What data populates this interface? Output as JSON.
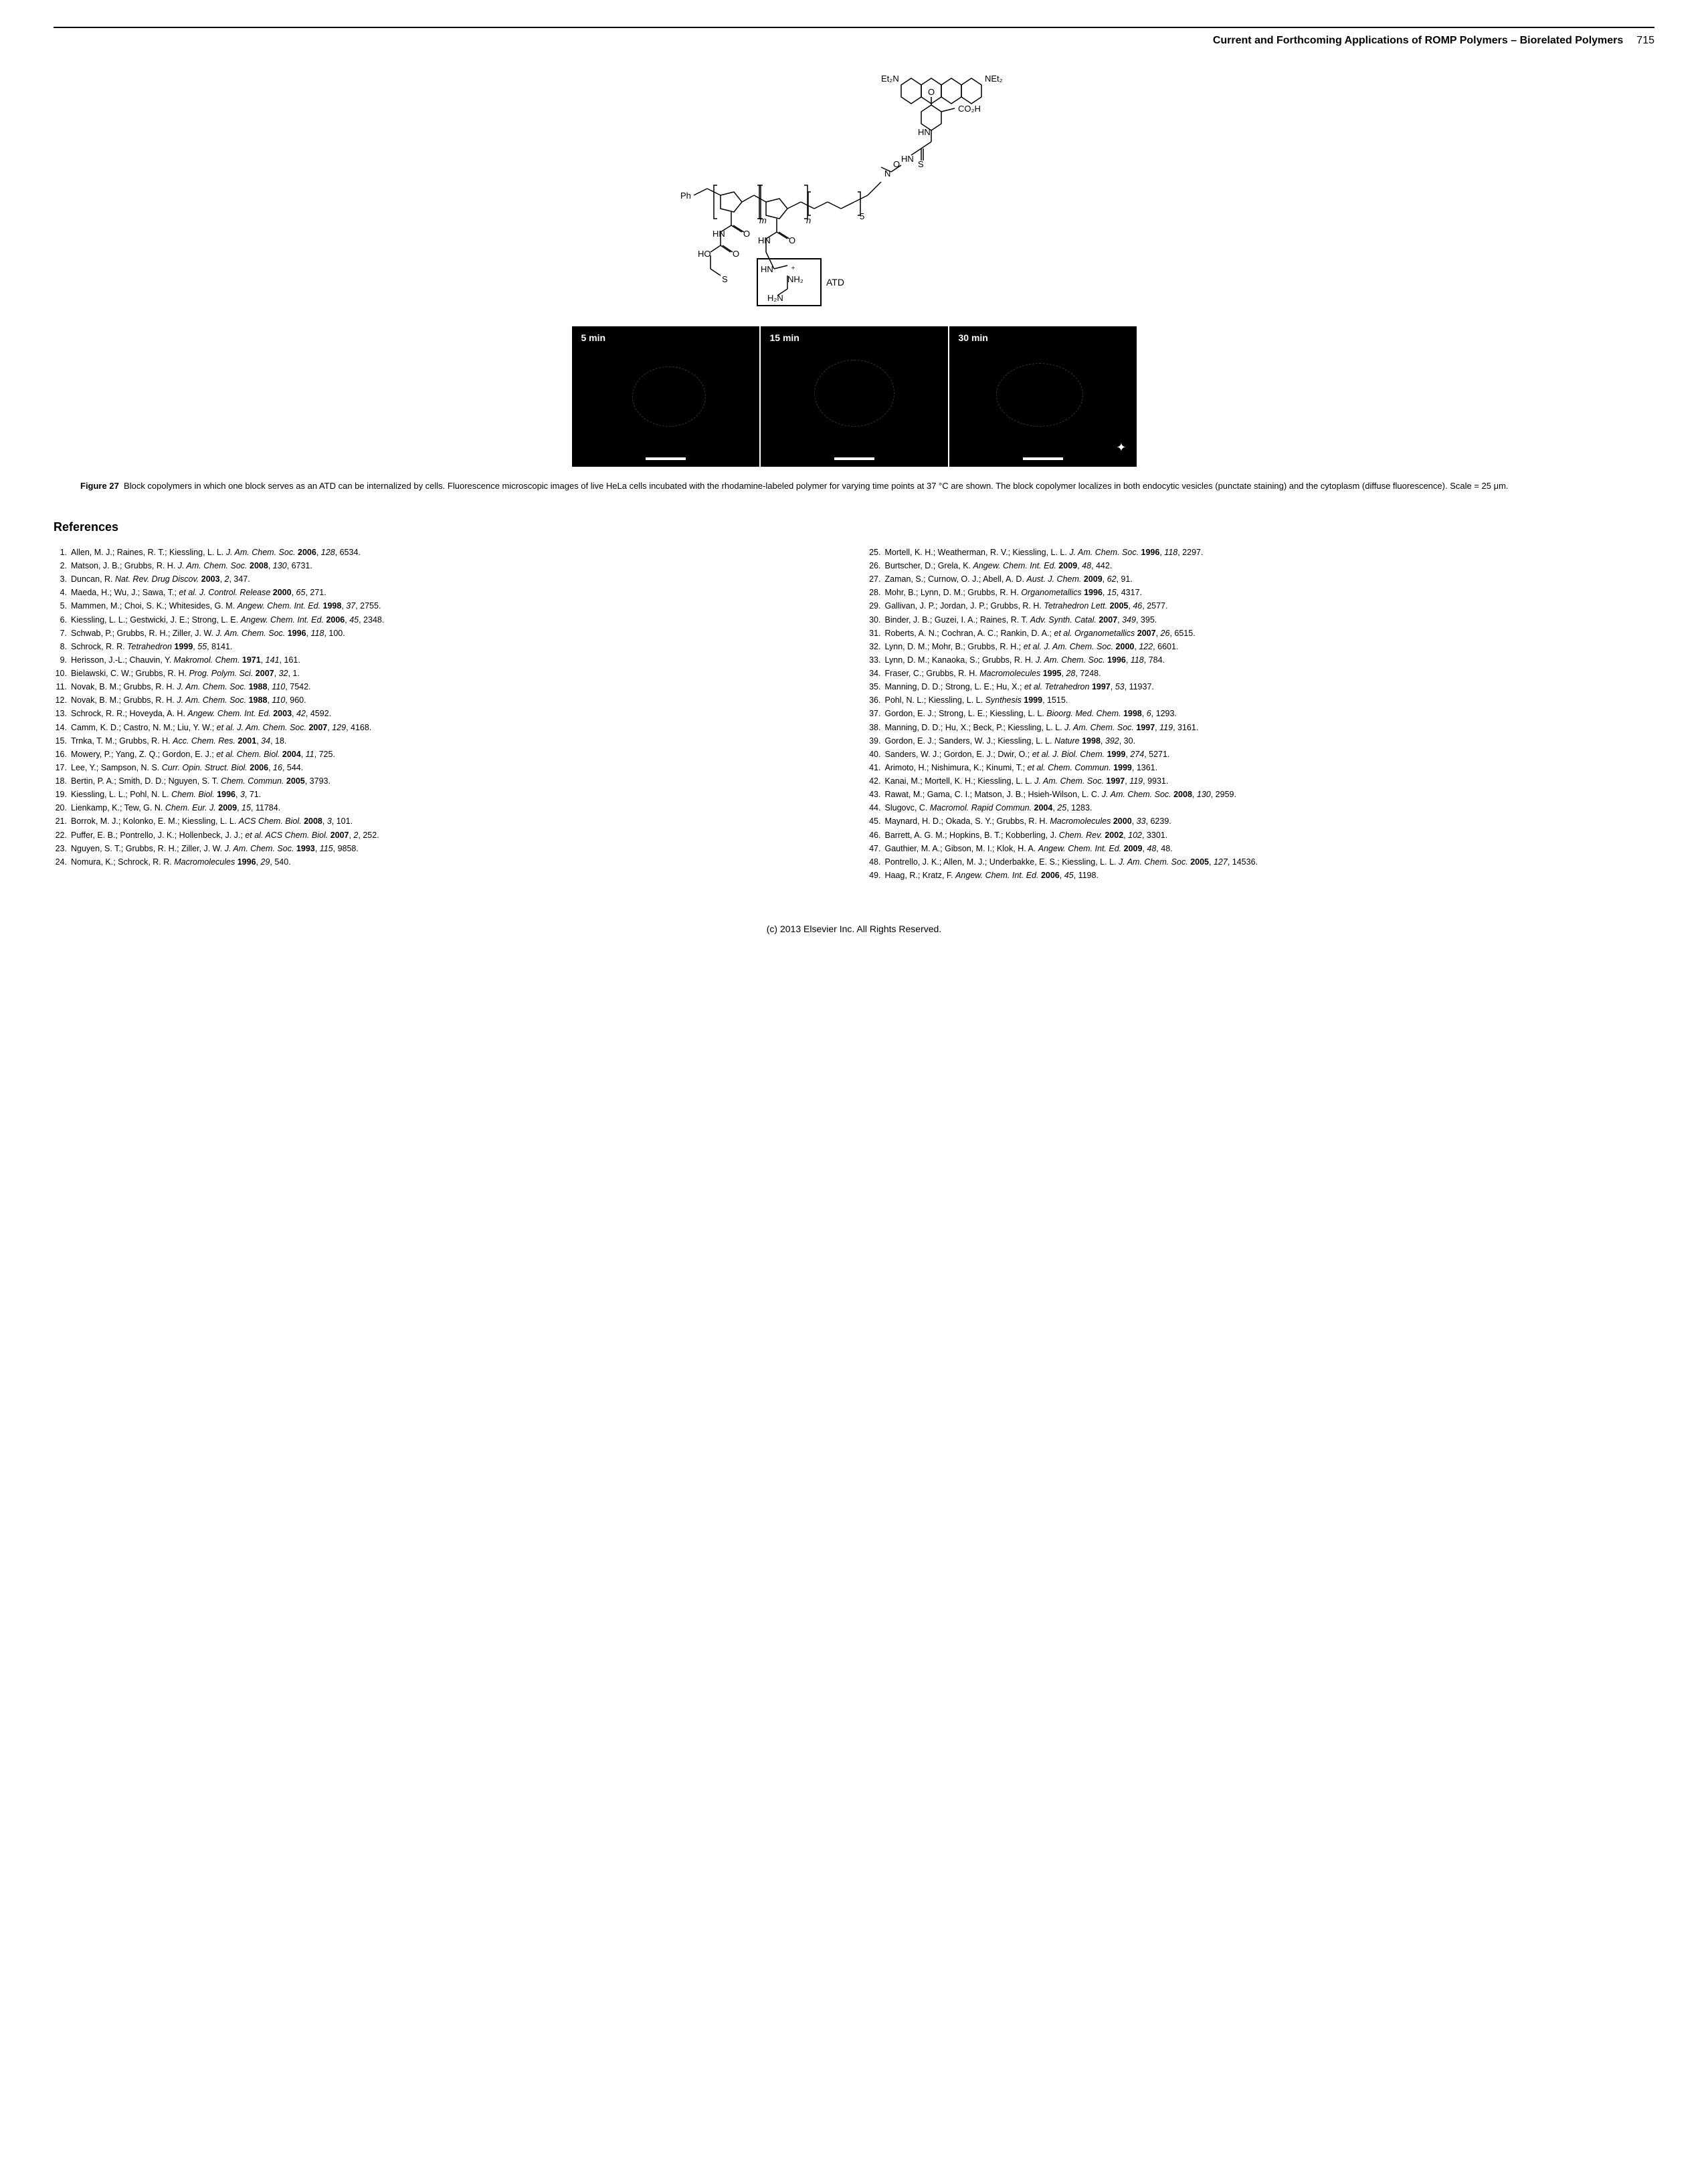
{
  "header": {
    "title": "Current and Forthcoming Applications of ROMP Polymers – Biorelated Polymers",
    "page": "715"
  },
  "figure": {
    "panels": [
      "5 min",
      "15 min",
      "30 min"
    ],
    "label": "Figure 27",
    "caption": "Block copolymers in which one block serves as an ATD can be internalized by cells. Fluorescence microscopic images of live HeLa cells incubated with the rhodamine-labeled polymer for varying time points at 37 °C are shown. The block copolymer localizes in both endocytic vesicles (punctate staining) and the cytoplasm (diffuse fluorescence). Scale = 25 μm.",
    "chem_labels": {
      "et2n": "Et₂N",
      "net2": "NEt₂",
      "co2h": "CO₂H",
      "ph": "Ph",
      "hn": "HN",
      "ho": "HO",
      "h2n": "H₂N",
      "nh2": "NH₂",
      "atd": "ATD",
      "o": "O",
      "s": "S",
      "n": "N",
      "m": "m",
      "nn": "n",
      "five": "5"
    }
  },
  "references_heading": "References",
  "references_left": [
    {
      "n": "1.",
      "t": "Allen, M. J.; Raines, R. T.; Kiessling, L. L. <em>J. Am. Chem. Soc.</em> <span class='bold'>2006</span>, <em>128</em>, 6534."
    },
    {
      "n": "2.",
      "t": "Matson, J. B.; Grubbs, R. H. <em>J. Am. Chem. Soc.</em> <span class='bold'>2008</span>, <em>130</em>, 6731."
    },
    {
      "n": "3.",
      "t": "Duncan, R. <em>Nat. Rev. Drug Discov.</em> <span class='bold'>2003</span>, <em>2</em>, 347."
    },
    {
      "n": "4.",
      "t": "Maeda, H.; Wu, J.; Sawa, T.; <em>et al. J. Control. Release</em> <span class='bold'>2000</span>, <em>65</em>, 271."
    },
    {
      "n": "5.",
      "t": "Mammen, M.; Choi, S. K.; Whitesides, G. M. <em>Angew. Chem. Int. Ed.</em> <span class='bold'>1998</span>, <em>37</em>, 2755."
    },
    {
      "n": "6.",
      "t": "Kiessling, L. L.; Gestwicki, J. E.; Strong, L. E. <em>Angew. Chem. Int. Ed.</em> <span class='bold'>2006</span>, <em>45</em>, 2348."
    },
    {
      "n": "7.",
      "t": "Schwab, P.; Grubbs, R. H.; Ziller, J. W. <em>J. Am. Chem. Soc.</em> <span class='bold'>1996</span>, <em>118</em>, 100."
    },
    {
      "n": "8.",
      "t": "Schrock, R. R. <em>Tetrahedron</em> <span class='bold'>1999</span>, <em>55</em>, 8141."
    },
    {
      "n": "9.",
      "t": "Herisson, J.-L.; Chauvin, Y. <em>Makromol. Chem.</em> <span class='bold'>1971</span>, <em>141</em>, 161."
    },
    {
      "n": "10.",
      "t": "Bielawski, C. W.; Grubbs, R. H. <em>Prog. Polym. Sci.</em> <span class='bold'>2007</span>, <em>32</em>, 1."
    },
    {
      "n": "11.",
      "t": "Novak, B. M.; Grubbs, R. H. <em>J. Am. Chem. Soc.</em> <span class='bold'>1988</span>, <em>110</em>, 7542."
    },
    {
      "n": "12.",
      "t": "Novak, B. M.; Grubbs, R. H. <em>J. Am. Chem. Soc.</em> <span class='bold'>1988</span>, <em>110</em>, 960."
    },
    {
      "n": "13.",
      "t": "Schrock, R. R.; Hoveyda, A. H. <em>Angew. Chem. Int. Ed.</em> <span class='bold'>2003</span>, <em>42</em>, 4592."
    },
    {
      "n": "14.",
      "t": "Camm, K. D.; Castro, N. M.; Liu, Y. W.; <em>et al. J. Am. Chem. Soc.</em> <span class='bold'>2007</span>, <em>129</em>, 4168."
    },
    {
      "n": "15.",
      "t": "Trnka, T. M.; Grubbs, R. H. <em>Acc. Chem. Res.</em> <span class='bold'>2001</span>, <em>34</em>, 18."
    },
    {
      "n": "16.",
      "t": "Mowery, P.; Yang, Z. Q.; Gordon, E. J.; <em>et al. Chem. Biol.</em> <span class='bold'>2004</span>, <em>11</em>, 725."
    },
    {
      "n": "17.",
      "t": "Lee, Y.; Sampson, N. S. <em>Curr. Opin. Struct. Biol.</em> <span class='bold'>2006</span>, <em>16</em>, 544."
    },
    {
      "n": "18.",
      "t": "Bertin, P. A.; Smith, D. D.; Nguyen, S. T. <em>Chem. Commun.</em> <span class='bold'>2005</span>, 3793."
    },
    {
      "n": "19.",
      "t": "Kiessling, L. L.; Pohl, N. L. <em>Chem. Biol.</em> <span class='bold'>1996</span>, <em>3</em>, 71."
    },
    {
      "n": "20.",
      "t": "Lienkamp, K.; Tew, G. N. <em>Chem. Eur. J.</em> <span class='bold'>2009</span>, <em>15</em>, 11784."
    },
    {
      "n": "21.",
      "t": "Borrok, M. J.; Kolonko, E. M.; Kiessling, L. L. <em>ACS Chem. Biol.</em> <span class='bold'>2008</span>, <em>3</em>, 101."
    },
    {
      "n": "22.",
      "t": "Puffer, E. B.; Pontrello, J. K.; Hollenbeck, J. J.; <em>et al. ACS Chem. Biol.</em> <span class='bold'>2007</span>, <em>2</em>, 252."
    },
    {
      "n": "23.",
      "t": "Nguyen, S. T.; Grubbs, R. H.; Ziller, J. W. <em>J. Am. Chem. Soc.</em> <span class='bold'>1993</span>, <em>115</em>, 9858."
    },
    {
      "n": "24.",
      "t": "Nomura, K.; Schrock, R. R. <em>Macromolecules</em> <span class='bold'>1996</span>, <em>29</em>, 540."
    }
  ],
  "references_right": [
    {
      "n": "25.",
      "t": "Mortell, K. H.; Weatherman, R. V.; Kiessling, L. L. <em>J. Am. Chem. Soc.</em> <span class='bold'>1996</span>, <em>118</em>, 2297."
    },
    {
      "n": "26.",
      "t": "Burtscher, D.; Grela, K. <em>Angew. Chem. Int. Ed.</em> <span class='bold'>2009</span>, <em>48</em>, 442."
    },
    {
      "n": "27.",
      "t": "Zaman, S.; Curnow, O. J.; Abell, A. D. <em>Aust. J. Chem.</em> <span class='bold'>2009</span>, <em>62</em>, 91."
    },
    {
      "n": "28.",
      "t": "Mohr, B.; Lynn, D. M.; Grubbs, R. H. <em>Organometallics</em> <span class='bold'>1996</span>, <em>15</em>, 4317."
    },
    {
      "n": "29.",
      "t": "Gallivan, J. P.; Jordan, J. P.; Grubbs, R. H. <em>Tetrahedron Lett.</em> <span class='bold'>2005</span>, <em>46</em>, 2577."
    },
    {
      "n": "30.",
      "t": "Binder, J. B.; Guzei, I. A.; Raines, R. T. <em>Adv. Synth. Catal.</em> <span class='bold'>2007</span>, <em>349</em>, 395."
    },
    {
      "n": "31.",
      "t": "Roberts, A. N.; Cochran, A. C.; Rankin, D. A.; <em>et al. Organometallics</em> <span class='bold'>2007</span>, <em>26</em>, 6515."
    },
    {
      "n": "32.",
      "t": "Lynn, D. M.; Mohr, B.; Grubbs, R. H.; <em>et al. J. Am. Chem. Soc.</em> <span class='bold'>2000</span>, <em>122</em>, 6601."
    },
    {
      "n": "33.",
      "t": "Lynn, D. M.; Kanaoka, S.; Grubbs, R. H. <em>J. Am. Chem. Soc.</em> <span class='bold'>1996</span>, <em>118</em>, 784."
    },
    {
      "n": "34.",
      "t": "Fraser, C.; Grubbs, R. H. <em>Macromolecules</em> <span class='bold'>1995</span>, <em>28</em>, 7248."
    },
    {
      "n": "35.",
      "t": "Manning, D. D.; Strong, L. E.; Hu, X.; <em>et al. Tetrahedron</em> <span class='bold'>1997</span>, <em>53</em>, 11937."
    },
    {
      "n": "36.",
      "t": "Pohl, N. L.; Kiessling, L. L. <em>Synthesis</em> <span class='bold'>1999</span>, 1515."
    },
    {
      "n": "37.",
      "t": "Gordon, E. J.; Strong, L. E.; Kiessling, L. L. <em>Bioorg. Med. Chem.</em> <span class='bold'>1998</span>, <em>6</em>, 1293."
    },
    {
      "n": "38.",
      "t": "Manning, D. D.; Hu, X.; Beck, P.; Kiessling, L. L. <em>J. Am. Chem. Soc.</em> <span class='bold'>1997</span>, <em>119</em>, 3161."
    },
    {
      "n": "39.",
      "t": "Gordon, E. J.; Sanders, W. J.; Kiessling, L. L. <em>Nature</em> <span class='bold'>1998</span>, <em>392</em>, 30."
    },
    {
      "n": "40.",
      "t": "Sanders, W. J.; Gordon, E. J.; Dwir, O.; <em>et al. J. Biol. Chem.</em> <span class='bold'>1999</span>, <em>274</em>, 5271."
    },
    {
      "n": "41.",
      "t": "Arimoto, H.; Nishimura, K.; Kinumi, T.; <em>et al. Chem. Commun.</em> <span class='bold'>1999</span>, 1361."
    },
    {
      "n": "42.",
      "t": "Kanai, M.; Mortell, K. H.; Kiessling, L. L. <em>J. Am. Chem. Soc.</em> <span class='bold'>1997</span>, <em>119</em>, 9931."
    },
    {
      "n": "43.",
      "t": "Rawat, M.; Gama, C. I.; Matson, J. B.; Hsieh-Wilson, L. C. <em>J. Am. Chem. Soc.</em> <span class='bold'>2008</span>, <em>130</em>, 2959."
    },
    {
      "n": "44.",
      "t": "Slugovc, C. <em>Macromol. Rapid Commun.</em> <span class='bold'>2004</span>, <em>25</em>, 1283."
    },
    {
      "n": "45.",
      "t": "Maynard, H. D.; Okada, S. Y.; Grubbs, R. H. <em>Macromolecules</em> <span class='bold'>2000</span>, <em>33</em>, 6239."
    },
    {
      "n": "46.",
      "t": "Barrett, A. G. M.; Hopkins, B. T.; Kobberling, J. <em>Chem. Rev.</em> <span class='bold'>2002</span>, <em>102</em>, 3301."
    },
    {
      "n": "47.",
      "t": "Gauthier, M. A.; Gibson, M. I.; Klok, H. A. <em>Angew. Chem. Int. Ed.</em> <span class='bold'>2009</span>, <em>48</em>, 48."
    },
    {
      "n": "48.",
      "t": "Pontrello, J. K.; Allen, M. J.; Underbakke, E. S.; Kiessling, L. L. <em>J. Am. Chem. Soc.</em> <span class='bold'>2005</span>, <em>127</em>, 14536."
    },
    {
      "n": "49.",
      "t": "Haag, R.; Kratz, F. <em>Angew. Chem. Int. Ed.</em> <span class='bold'>2006</span>, <em>45</em>, 1198."
    }
  ],
  "footer": "(c) 2013 Elsevier Inc. All Rights Reserved."
}
